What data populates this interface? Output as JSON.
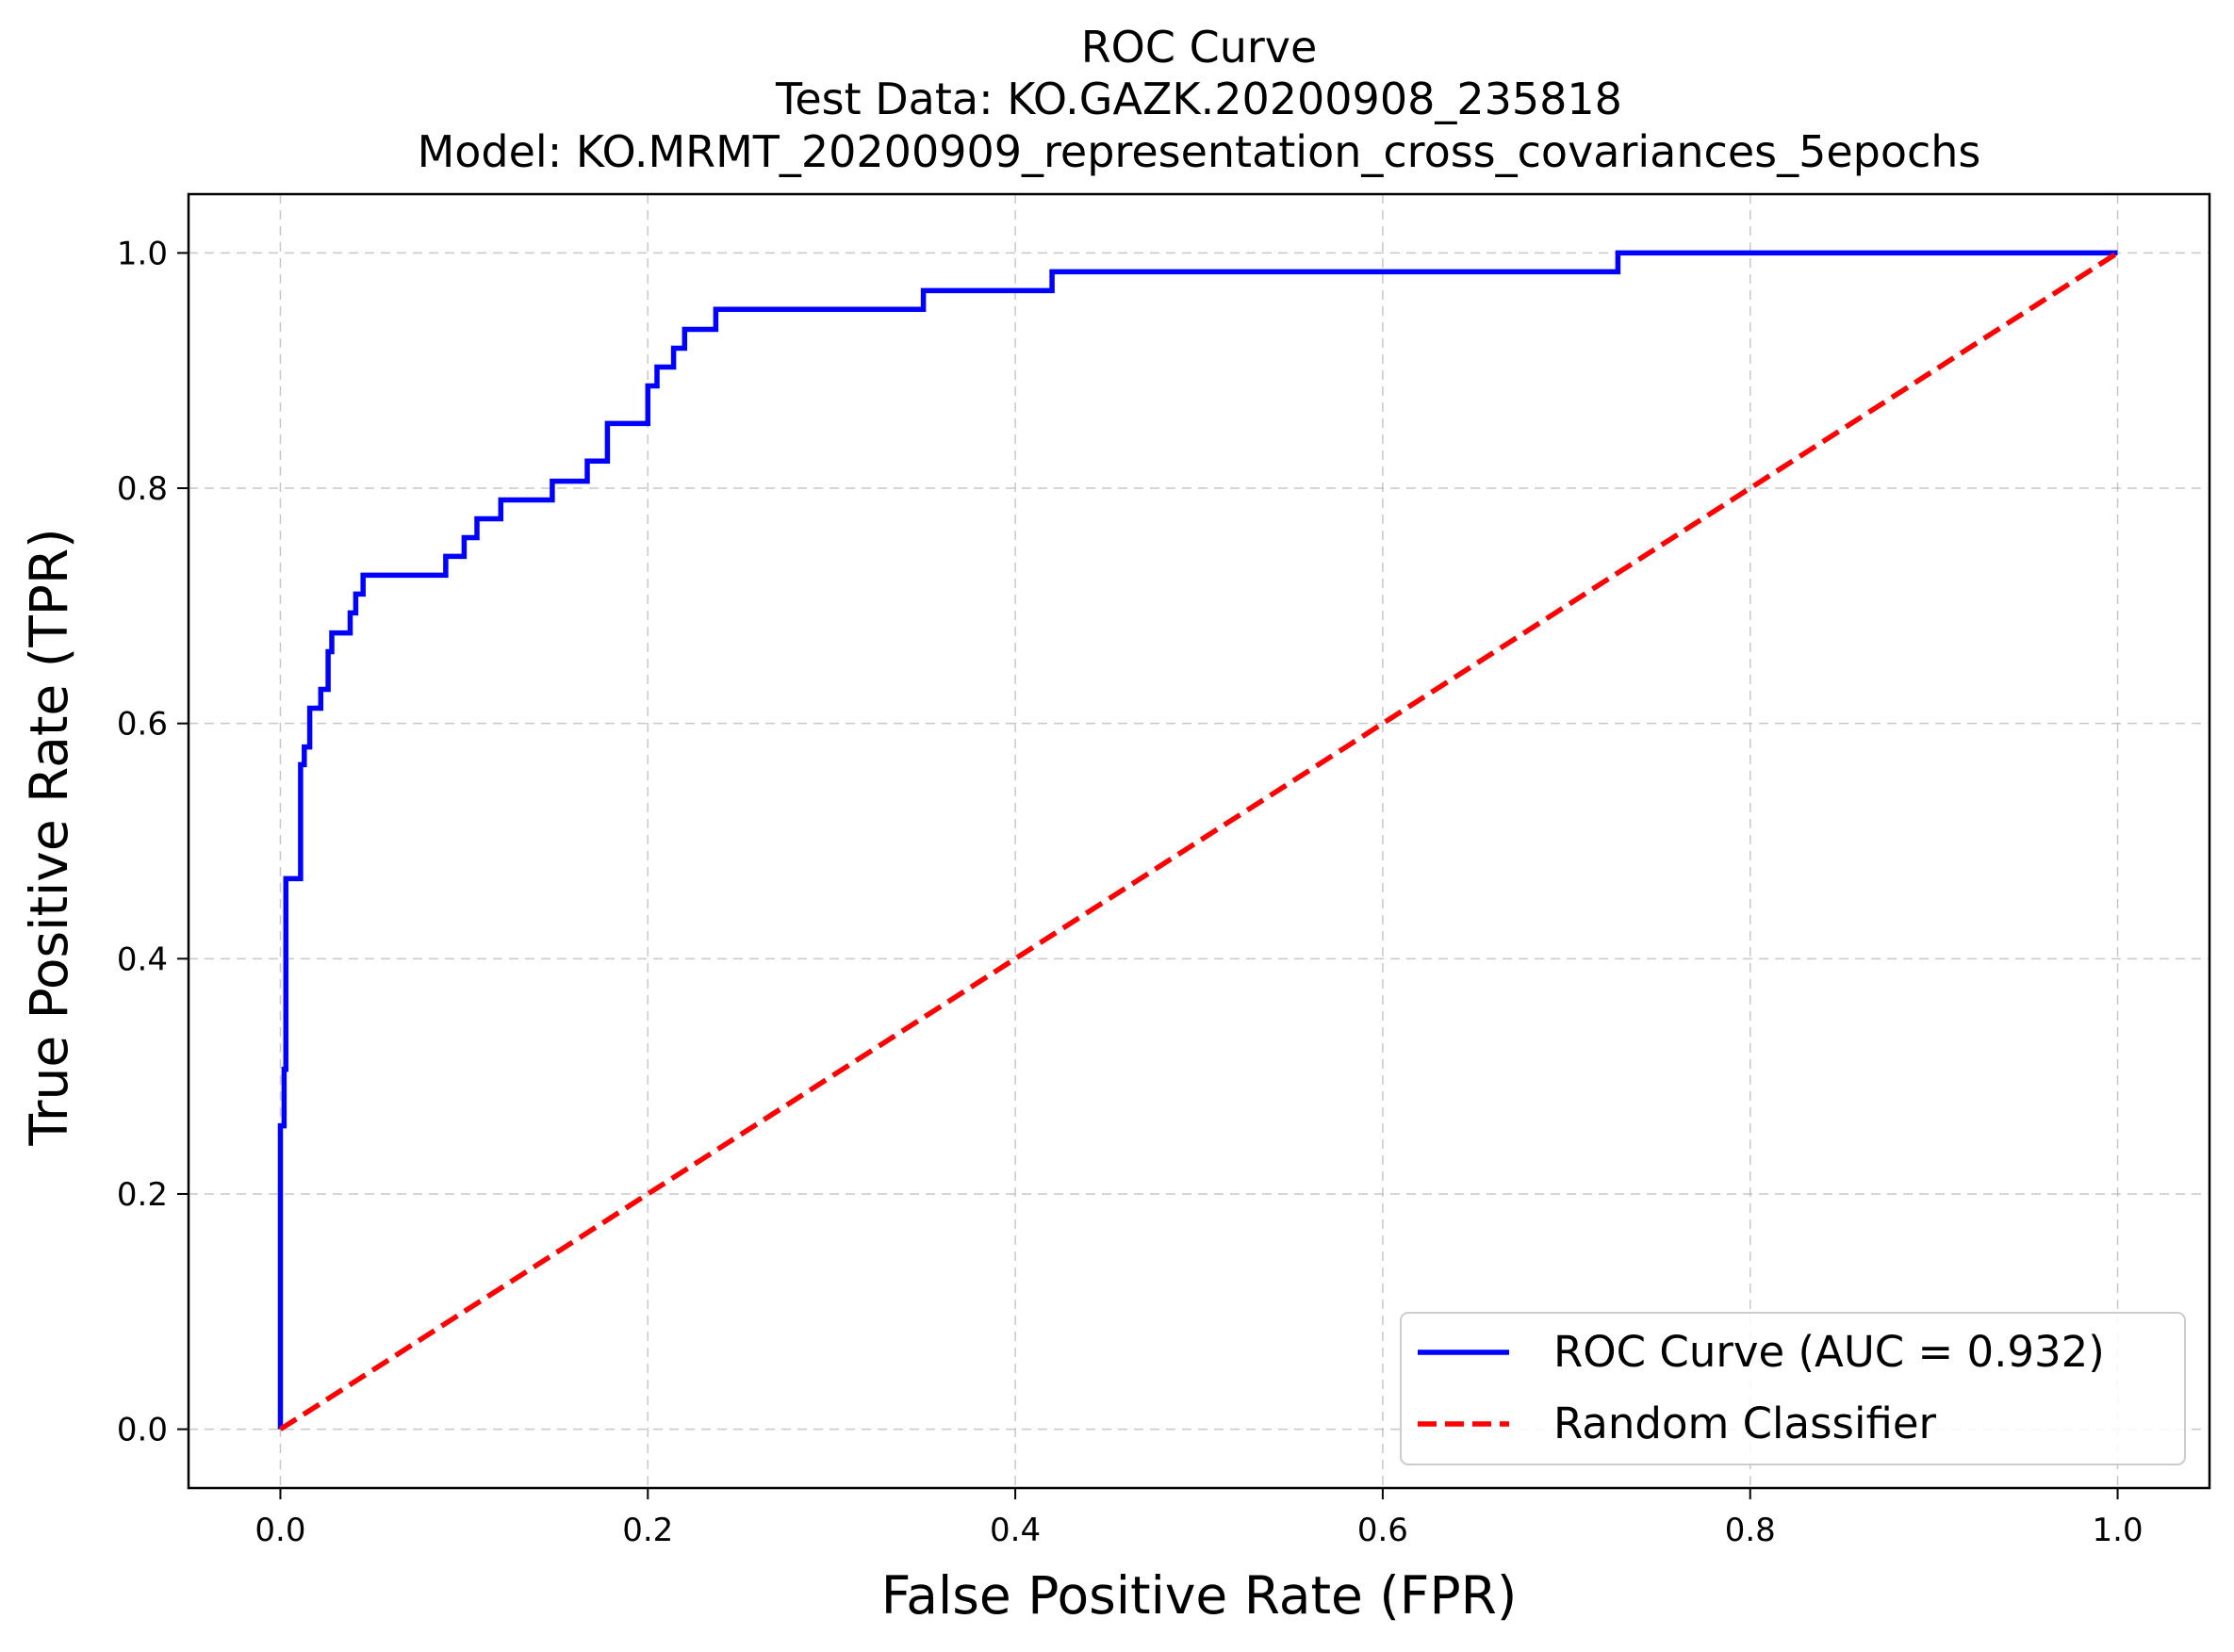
{
  "chart_data": {
    "type": "line",
    "title_lines": [
      "ROC Curve",
      "Test Data: KO.GAZK.20200908_235818",
      "Model: KO.MRMT_20200909_representation_cross_covariances_5epochs"
    ],
    "xlabel": "False Positive Rate (FPR)",
    "ylabel": "True Positive Rate (TPR)",
    "xlim": [
      -0.05,
      1.05
    ],
    "ylim": [
      -0.05,
      1.05
    ],
    "x_ticks": [
      0.0,
      0.2,
      0.4,
      0.6,
      0.8,
      1.0
    ],
    "y_ticks": [
      0.0,
      0.2,
      0.4,
      0.6,
      0.8,
      1.0
    ],
    "x_tick_labels": [
      "0.0",
      "0.2",
      "0.4",
      "0.6",
      "0.8",
      "1.0"
    ],
    "y_tick_labels": [
      "0.0",
      "0.2",
      "0.4",
      "0.6",
      "0.8",
      "1.0"
    ],
    "grid": true,
    "legend_position": "lower-right",
    "series": [
      {
        "name": "ROC Curve (AUC = 0.932)",
        "color": "#0000ff",
        "style": "solid",
        "x": [
          0.0,
          0.0,
          0.002,
          0.002,
          0.003,
          0.003,
          0.004,
          0.004,
          0.011,
          0.011,
          0.013,
          0.013,
          0.016,
          0.016,
          0.022,
          0.022,
          0.026,
          0.026,
          0.028,
          0.028,
          0.038,
          0.038,
          0.041,
          0.041,
          0.045,
          0.045,
          0.09,
          0.09,
          0.1,
          0.1,
          0.107,
          0.107,
          0.12,
          0.12,
          0.148,
          0.148,
          0.167,
          0.167,
          0.178,
          0.178,
          0.2,
          0.2,
          0.205,
          0.205,
          0.214,
          0.214,
          0.22,
          0.22,
          0.237,
          0.237,
          0.35,
          0.35,
          0.42,
          0.42,
          0.728,
          0.728,
          1.0
        ],
        "y": [
          0.0,
          0.258,
          0.258,
          0.306,
          0.306,
          0.468,
          0.468,
          0.468,
          0.468,
          0.565,
          0.565,
          0.58,
          0.58,
          0.613,
          0.613,
          0.629,
          0.629,
          0.661,
          0.661,
          0.677,
          0.677,
          0.694,
          0.694,
          0.71,
          0.71,
          0.726,
          0.726,
          0.742,
          0.742,
          0.758,
          0.758,
          0.774,
          0.774,
          0.79,
          0.79,
          0.806,
          0.806,
          0.823,
          0.823,
          0.855,
          0.855,
          0.887,
          0.887,
          0.903,
          0.903,
          0.919,
          0.919,
          0.935,
          0.935,
          0.952,
          0.952,
          0.968,
          0.968,
          0.984,
          0.984,
          1.0,
          1.0
        ]
      },
      {
        "name": "Random Classifier",
        "color": "#ff0000",
        "style": "dashed",
        "x": [
          0.0,
          1.0
        ],
        "y": [
          0.0,
          1.0
        ]
      }
    ]
  }
}
